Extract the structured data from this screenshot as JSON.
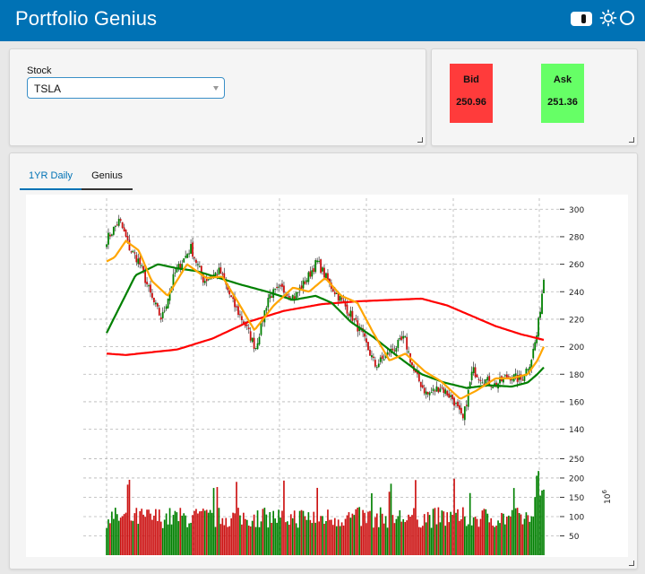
{
  "app": {
    "title": "Portfolio Genius"
  },
  "header_icons": [
    "toggle-switch",
    "sun-icon",
    "moon-icon"
  ],
  "stock": {
    "label": "Stock",
    "selected": "TSLA"
  },
  "quote": {
    "bid": {
      "label": "Bid",
      "value": "250.96",
      "color": "#ff3b3b"
    },
    "ask": {
      "label": "Ask",
      "value": "251.36",
      "color": "#66ff66"
    }
  },
  "tabs": [
    {
      "label": "1YR Daily",
      "active": true
    },
    {
      "label": "Genius",
      "active": false
    }
  ],
  "chart_data": {
    "type": "candlestick_with_volume",
    "title": "",
    "price_axis": {
      "ticks": [
        140,
        160,
        180,
        200,
        220,
        240,
        260,
        280,
        300
      ],
      "ylim": [
        128,
        308
      ]
    },
    "volume_axis": {
      "ticks": [
        50,
        100,
        150,
        200,
        250
      ],
      "ylim": [
        0,
        265
      ],
      "unit_label": "10^6"
    },
    "x": {
      "count": 250
    },
    "price_anchors": [
      [
        0,
        278
      ],
      [
        8,
        292
      ],
      [
        14,
        272
      ],
      [
        20,
        262
      ],
      [
        28,
        235
      ],
      [
        34,
        220
      ],
      [
        42,
        253
      ],
      [
        52,
        272
      ],
      [
        60,
        248
      ],
      [
        70,
        255
      ],
      [
        78,
        232
      ],
      [
        86,
        215
      ],
      [
        92,
        199
      ],
      [
        100,
        237
      ],
      [
        108,
        242
      ],
      [
        116,
        236
      ],
      [
        124,
        250
      ],
      [
        130,
        262
      ],
      [
        138,
        245
      ],
      [
        146,
        232
      ],
      [
        152,
        221
      ],
      [
        158,
        208
      ],
      [
        166,
        186
      ],
      [
        174,
        195
      ],
      [
        184,
        206
      ],
      [
        190,
        181
      ],
      [
        198,
        165
      ],
      [
        206,
        171
      ],
      [
        214,
        162
      ],
      [
        220,
        146
      ],
      [
        226,
        183
      ],
      [
        232,
        177
      ],
      [
        240,
        172
      ],
      [
        248,
        179
      ],
      [
        256,
        176
      ],
      [
        262,
        190
      ],
      [
        266,
        210
      ],
      [
        270,
        250
      ]
    ],
    "ma_fast_anchors": [
      [
        0,
        262
      ],
      [
        5,
        265
      ],
      [
        12,
        277
      ],
      [
        20,
        270
      ],
      [
        28,
        248
      ],
      [
        38,
        237
      ],
      [
        50,
        260
      ],
      [
        62,
        250
      ],
      [
        72,
        251
      ],
      [
        82,
        232
      ],
      [
        92,
        212
      ],
      [
        104,
        230
      ],
      [
        116,
        243
      ],
      [
        126,
        240
      ],
      [
        136,
        250
      ],
      [
        146,
        237
      ],
      [
        156,
        232
      ],
      [
        166,
        210
      ],
      [
        176,
        190
      ],
      [
        186,
        195
      ],
      [
        198,
        182
      ],
      [
        208,
        175
      ],
      [
        220,
        162
      ],
      [
        230,
        168
      ],
      [
        242,
        177
      ],
      [
        252,
        177
      ],
      [
        262,
        180
      ],
      [
        268,
        190
      ],
      [
        272,
        200
      ]
    ],
    "ma_mid_anchors": [
      [
        0,
        210
      ],
      [
        18,
        252
      ],
      [
        32,
        260
      ],
      [
        44,
        257
      ],
      [
        56,
        255
      ],
      [
        70,
        250
      ],
      [
        84,
        245
      ],
      [
        100,
        240
      ],
      [
        116,
        234
      ],
      [
        130,
        237
      ],
      [
        140,
        232
      ],
      [
        152,
        218
      ],
      [
        166,
        207
      ],
      [
        180,
        194
      ],
      [
        196,
        180
      ],
      [
        210,
        174
      ],
      [
        224,
        170
      ],
      [
        238,
        172
      ],
      [
        252,
        171
      ],
      [
        262,
        174
      ],
      [
        268,
        180
      ],
      [
        272,
        185
      ]
    ],
    "ma_slow_anchors": [
      [
        0,
        195
      ],
      [
        12,
        194
      ],
      [
        44,
        198
      ],
      [
        66,
        206
      ],
      [
        88,
        218
      ],
      [
        110,
        226
      ],
      [
        134,
        231
      ],
      [
        156,
        233
      ],
      [
        176,
        234
      ],
      [
        196,
        235
      ],
      [
        212,
        230
      ],
      [
        228,
        222
      ],
      [
        242,
        215
      ],
      [
        258,
        209
      ],
      [
        272,
        205
      ]
    ],
    "colors": {
      "up": "#008000",
      "down": "#cc1111",
      "ma_fast": "#ffa500",
      "ma_mid": "#008000",
      "ma_slow": "#ff0000"
    }
  }
}
